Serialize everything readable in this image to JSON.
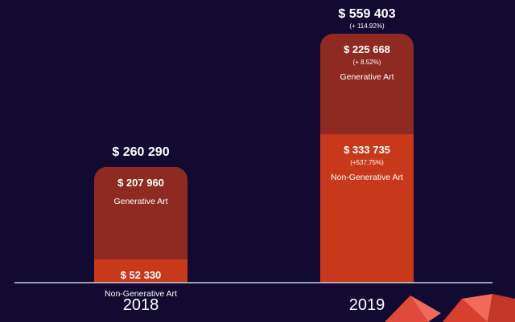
{
  "chart_data": {
    "type": "bar",
    "stacked": true,
    "categories": [
      "2018",
      "2019"
    ],
    "totals": [
      {
        "label": "$ 260 290",
        "value": 260290,
        "change": ""
      },
      {
        "label": "$ 559 403",
        "value": 559403,
        "change": "(+ 114.92%)"
      }
    ],
    "series": [
      {
        "name": "Non-Generative Art",
        "color": "#c8391c",
        "values": [
          52330,
          333735
        ],
        "value_labels": [
          "$ 52 330",
          "$ 333 735"
        ],
        "change_labels": [
          "",
          "(+537.75%)"
        ]
      },
      {
        "name": "Generative Art",
        "color": "#8e2a22",
        "values": [
          207960,
          225668
        ],
        "value_labels": [
          "$ 207 960",
          "$ 225 668"
        ],
        "change_labels": [
          "",
          "(+ 8.52%)"
        ]
      }
    ],
    "ylim": [
      0,
      559403
    ],
    "grid": false
  }
}
